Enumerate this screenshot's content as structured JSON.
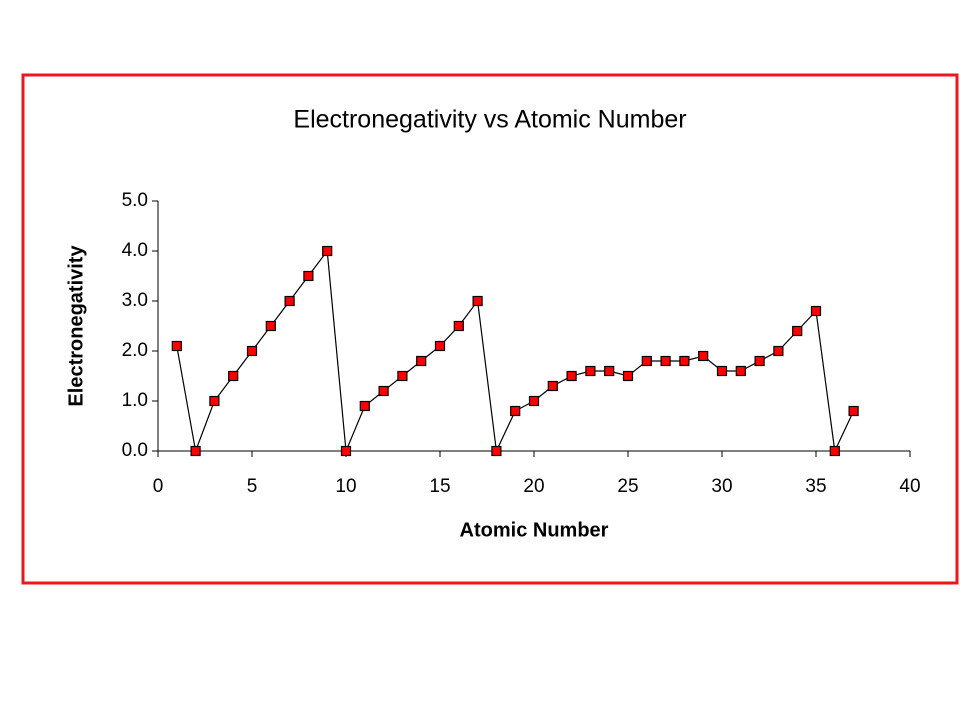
{
  "chart_data": {
    "type": "line",
    "title": "Electronegativity vs Atomic Number",
    "x_label": "Atomic Number",
    "y_label": "Electronegativity",
    "x": [
      1,
      2,
      3,
      4,
      5,
      6,
      7,
      8,
      9,
      10,
      11,
      12,
      13,
      14,
      15,
      16,
      17,
      18,
      19,
      20,
      21,
      22,
      23,
      24,
      25,
      26,
      27,
      28,
      29,
      30,
      31,
      32,
      33,
      34,
      35,
      36,
      37
    ],
    "series": [
      {
        "color": "#ff0000",
        "values": [
          2.1,
          0,
          1.0,
          1.5,
          2.0,
          2.5,
          3.0,
          3.5,
          4.0,
          0,
          0.9,
          1.2,
          1.5,
          1.8,
          2.1,
          2.5,
          3.0,
          0,
          0.8,
          1.0,
          1.3,
          1.5,
          1.6,
          1.6,
          1.5,
          1.8,
          1.8,
          1.8,
          1.9,
          1.6,
          1.6,
          1.8,
          2.0,
          2.4,
          2.8,
          0,
          0.8
        ]
      }
    ],
    "xlim": [
      0,
      40
    ],
    "xticks": [
      0,
      5,
      10,
      15,
      20,
      25,
      30,
      35,
      40
    ],
    "ylim": [
      0,
      5
    ],
    "yticks": [
      {
        "value": 0,
        "label": "0.0"
      },
      {
        "value": 1,
        "label": "1.0"
      },
      {
        "value": 2,
        "label": "2.0"
      },
      {
        "value": 3,
        "label": "3.0"
      },
      {
        "value": 4,
        "label": "4.0"
      },
      {
        "value": 5,
        "label": "5.0"
      }
    ],
    "grid": false
  }
}
